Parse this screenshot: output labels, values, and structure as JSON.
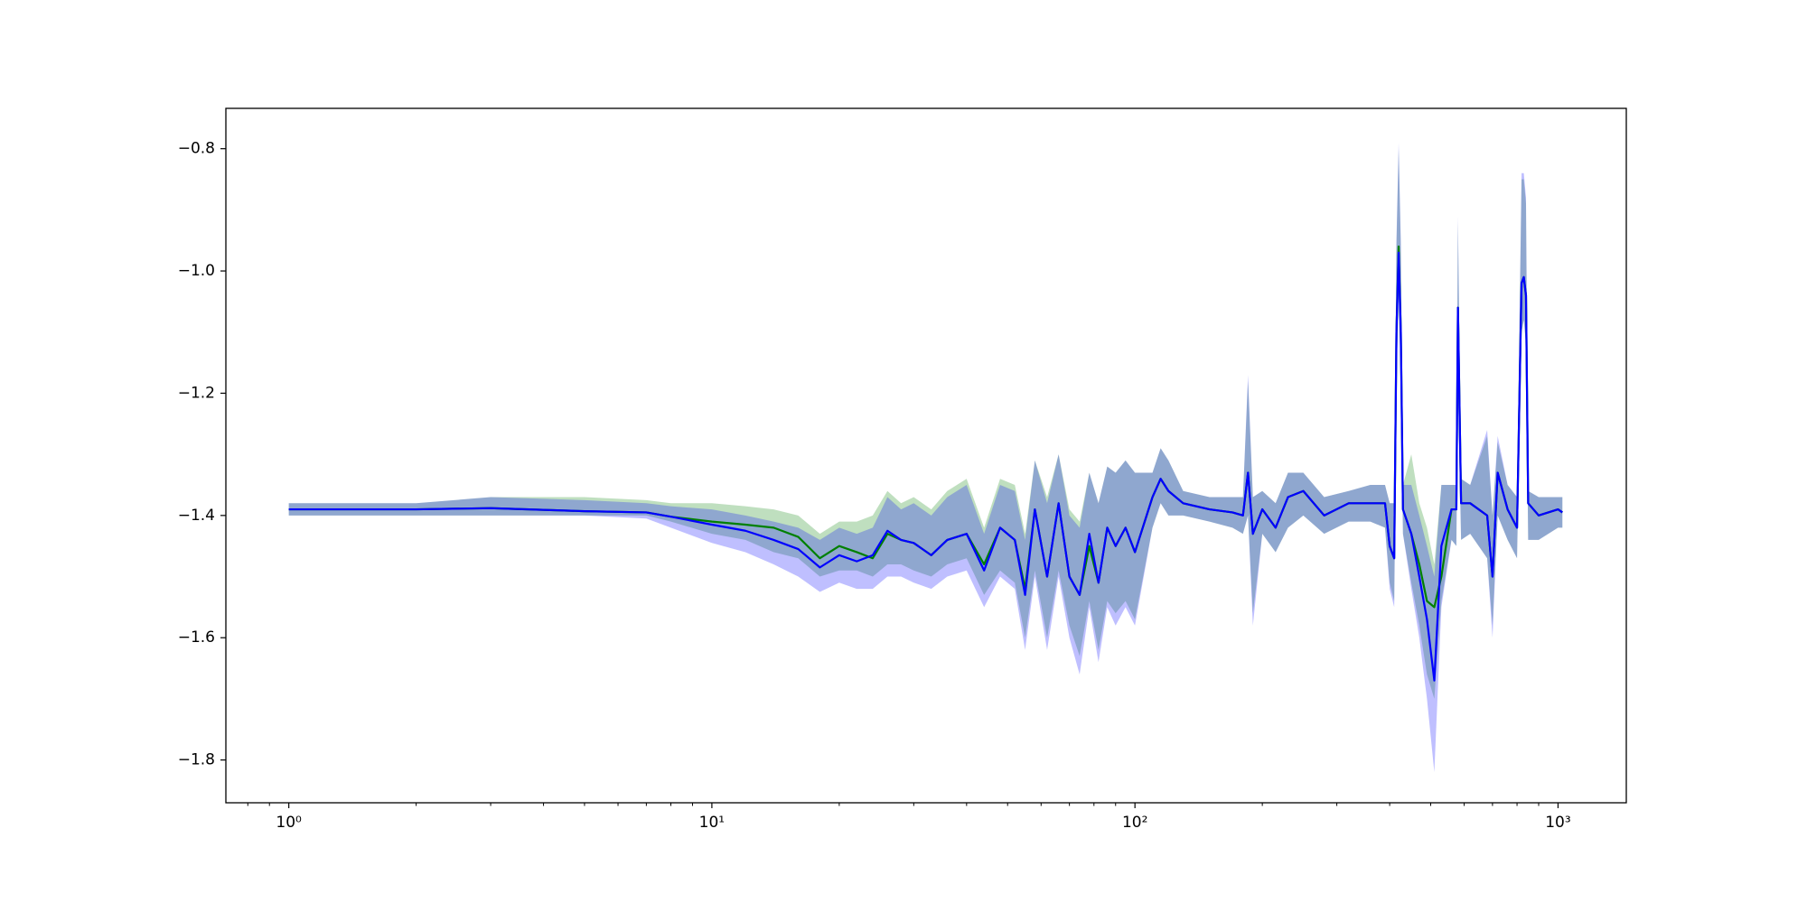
{
  "chart_data": {
    "type": "line",
    "xscale": "log",
    "x": [
      1,
      2,
      3,
      5,
      7,
      8,
      10,
      12,
      14,
      16,
      18,
      20,
      22,
      24,
      26,
      28,
      30,
      33,
      36,
      40,
      44,
      48,
      52,
      55,
      58,
      62,
      66,
      70,
      74,
      78,
      82,
      86,
      90,
      95,
      100,
      110,
      115,
      120,
      130,
      150,
      170,
      180,
      185,
      190,
      200,
      215,
      230,
      250,
      280,
      320,
      360,
      390,
      400,
      410,
      415,
      420,
      425,
      430,
      450,
      470,
      490,
      510,
      530,
      560,
      575,
      580,
      590,
      620,
      680,
      700,
      720,
      760,
      800,
      820,
      830,
      840,
      850,
      900,
      1000,
      1024
    ],
    "band_opacity": 0.25,
    "series": [
      {
        "color": "#008000",
        "values": [
          -1.39,
          -1.39,
          -1.388,
          -1.393,
          -1.395,
          -1.402,
          -1.41,
          -1.415,
          -1.42,
          -1.435,
          -1.47,
          -1.45,
          -1.46,
          -1.47,
          -1.43,
          -1.44,
          -1.445,
          -1.465,
          -1.44,
          -1.43,
          -1.48,
          -1.42,
          -1.44,
          -1.52,
          -1.39,
          -1.5,
          -1.38,
          -1.5,
          -1.53,
          -1.45,
          -1.51,
          -1.42,
          -1.45,
          -1.42,
          -1.46,
          -1.37,
          -1.34,
          -1.36,
          -1.38,
          -1.39,
          -1.395,
          -1.4,
          -1.33,
          -1.43,
          -1.39,
          -1.42,
          -1.37,
          -1.36,
          -1.4,
          -1.38,
          -1.38,
          -1.38,
          -1.45,
          -1.47,
          -1.1,
          -0.96,
          -1.1,
          -1.39,
          -1.43,
          -1.48,
          -1.54,
          -1.55,
          -1.5,
          -1.39,
          -1.39,
          -1.06,
          -1.38,
          -1.38,
          -1.4,
          -1.5,
          -1.33,
          -1.39,
          -1.42,
          -1.02,
          -1.01,
          -1.04,
          -1.38,
          -1.4,
          -1.39,
          -1.395
        ],
        "lower": [
          -1.4,
          -1.4,
          -1.4,
          -1.4,
          -1.4,
          -1.41,
          -1.43,
          -1.44,
          -1.46,
          -1.47,
          -1.5,
          -1.49,
          -1.49,
          -1.5,
          -1.48,
          -1.48,
          -1.49,
          -1.5,
          -1.48,
          -1.47,
          -1.53,
          -1.49,
          -1.51,
          -1.6,
          -1.49,
          -1.6,
          -1.49,
          -1.58,
          -1.63,
          -1.54,
          -1.62,
          -1.54,
          -1.56,
          -1.54,
          -1.57,
          -1.42,
          -1.38,
          -1.4,
          -1.4,
          -1.41,
          -1.42,
          -1.43,
          -1.4,
          -1.56,
          -1.43,
          -1.46,
          -1.42,
          -1.4,
          -1.43,
          -1.41,
          -1.41,
          -1.42,
          -1.51,
          -1.54,
          -1.18,
          -1.04,
          -1.18,
          -1.43,
          -1.51,
          -1.58,
          -1.66,
          -1.7,
          -1.54,
          -1.44,
          -1.45,
          -1.18,
          -1.44,
          -1.43,
          -1.47,
          -1.58,
          -1.4,
          -1.44,
          -1.47,
          -1.1,
          -1.08,
          -1.12,
          -1.44,
          -1.44,
          -1.42,
          -1.42
        ],
        "upper": [
          -1.38,
          -1.38,
          -1.37,
          -1.37,
          -1.375,
          -1.38,
          -1.38,
          -1.385,
          -1.39,
          -1.4,
          -1.43,
          -1.41,
          -1.41,
          -1.4,
          -1.36,
          -1.38,
          -1.37,
          -1.39,
          -1.36,
          -1.34,
          -1.42,
          -1.34,
          -1.35,
          -1.43,
          -1.31,
          -1.37,
          -1.3,
          -1.39,
          -1.41,
          -1.33,
          -1.38,
          -1.32,
          -1.33,
          -1.31,
          -1.33,
          -1.33,
          -1.29,
          -1.31,
          -1.36,
          -1.37,
          -1.37,
          -1.37,
          -1.18,
          -1.37,
          -1.36,
          -1.38,
          -1.33,
          -1.33,
          -1.37,
          -1.36,
          -1.35,
          -1.35,
          -1.38,
          -1.38,
          -0.96,
          -0.8,
          -0.96,
          -1.35,
          -1.3,
          -1.38,
          -1.42,
          -1.48,
          -1.35,
          -1.35,
          -1.35,
          -0.92,
          -1.34,
          -1.35,
          -1.27,
          -1.4,
          -1.28,
          -1.35,
          -1.37,
          -0.85,
          -0.85,
          -0.89,
          -1.36,
          -1.37,
          -1.37,
          -1.37
        ]
      },
      {
        "color": "#0000ff",
        "values": [
          -1.39,
          -1.39,
          -1.388,
          -1.393,
          -1.395,
          -1.402,
          -1.415,
          -1.425,
          -1.44,
          -1.455,
          -1.485,
          -1.465,
          -1.475,
          -1.465,
          -1.425,
          -1.44,
          -1.445,
          -1.465,
          -1.44,
          -1.43,
          -1.49,
          -1.42,
          -1.44,
          -1.53,
          -1.39,
          -1.5,
          -1.38,
          -1.5,
          -1.53,
          -1.43,
          -1.51,
          -1.42,
          -1.45,
          -1.42,
          -1.46,
          -1.37,
          -1.34,
          -1.36,
          -1.38,
          -1.39,
          -1.395,
          -1.4,
          -1.33,
          -1.43,
          -1.39,
          -1.42,
          -1.37,
          -1.36,
          -1.4,
          -1.38,
          -1.38,
          -1.38,
          -1.45,
          -1.47,
          -1.1,
          -0.97,
          -1.1,
          -1.39,
          -1.43,
          -1.5,
          -1.57,
          -1.67,
          -1.45,
          -1.39,
          -1.39,
          -1.06,
          -1.38,
          -1.38,
          -1.4,
          -1.5,
          -1.33,
          -1.39,
          -1.42,
          -1.02,
          -1.01,
          -1.04,
          -1.38,
          -1.4,
          -1.39,
          -1.395
        ],
        "lower": [
          -1.4,
          -1.4,
          -1.4,
          -1.4,
          -1.405,
          -1.42,
          -1.445,
          -1.46,
          -1.48,
          -1.5,
          -1.525,
          -1.51,
          -1.52,
          -1.52,
          -1.5,
          -1.5,
          -1.51,
          -1.52,
          -1.5,
          -1.49,
          -1.55,
          -1.5,
          -1.52,
          -1.62,
          -1.5,
          -1.62,
          -1.5,
          -1.6,
          -1.66,
          -1.55,
          -1.64,
          -1.55,
          -1.58,
          -1.55,
          -1.58,
          -1.42,
          -1.38,
          -1.4,
          -1.4,
          -1.41,
          -1.42,
          -1.43,
          -1.4,
          -1.58,
          -1.43,
          -1.46,
          -1.42,
          -1.4,
          -1.43,
          -1.41,
          -1.41,
          -1.42,
          -1.52,
          -1.55,
          -1.2,
          -1.05,
          -1.2,
          -1.43,
          -1.52,
          -1.6,
          -1.7,
          -1.82,
          -1.55,
          -1.44,
          -1.45,
          -1.2,
          -1.44,
          -1.43,
          -1.47,
          -1.6,
          -1.4,
          -1.44,
          -1.47,
          -1.1,
          -1.08,
          -1.12,
          -1.44,
          -1.44,
          -1.42,
          -1.42
        ],
        "upper": [
          -1.38,
          -1.38,
          -1.37,
          -1.375,
          -1.38,
          -1.385,
          -1.39,
          -1.4,
          -1.41,
          -1.42,
          -1.44,
          -1.42,
          -1.43,
          -1.42,
          -1.37,
          -1.39,
          -1.38,
          -1.4,
          -1.37,
          -1.35,
          -1.43,
          -1.35,
          -1.36,
          -1.44,
          -1.31,
          -1.38,
          -1.3,
          -1.4,
          -1.42,
          -1.33,
          -1.38,
          -1.32,
          -1.33,
          -1.31,
          -1.33,
          -1.33,
          -1.29,
          -1.31,
          -1.36,
          -1.37,
          -1.37,
          -1.37,
          -1.17,
          -1.37,
          -1.36,
          -1.38,
          -1.33,
          -1.33,
          -1.37,
          -1.36,
          -1.35,
          -1.35,
          -1.38,
          -1.38,
          -0.95,
          -0.79,
          -0.95,
          -1.35,
          -1.35,
          -1.4,
          -1.45,
          -1.5,
          -1.35,
          -1.35,
          -1.35,
          -0.91,
          -1.34,
          -1.35,
          -1.26,
          -1.4,
          -1.27,
          -1.35,
          -1.37,
          -0.84,
          -0.84,
          -0.88,
          -1.36,
          -1.37,
          -1.37,
          -1.37
        ]
      }
    ],
    "xlim": [
      0.71,
      1450
    ],
    "ylim": [
      -1.87,
      -0.734
    ],
    "xticks": [
      {
        "value": 1,
        "label": "10⁰"
      },
      {
        "value": 10,
        "label": "10¹"
      },
      {
        "value": 100,
        "label": "10²"
      },
      {
        "value": 1000,
        "label": "10³"
      }
    ],
    "xminor_ticks": [
      0.8,
      0.9,
      2,
      3,
      4,
      5,
      6,
      7,
      8,
      9,
      20,
      30,
      40,
      50,
      60,
      70,
      80,
      90,
      200,
      300,
      400,
      500,
      600,
      700,
      800,
      900
    ],
    "yticks": [
      {
        "value": -0.8,
        "label": "−0.8"
      },
      {
        "value": -1.0,
        "label": "−1.0"
      },
      {
        "value": -1.2,
        "label": "−1.2"
      },
      {
        "value": -1.4,
        "label": "−1.4"
      },
      {
        "value": -1.6,
        "label": "−1.6"
      },
      {
        "value": -1.8,
        "label": "−1.8"
      }
    ],
    "grid": false
  }
}
